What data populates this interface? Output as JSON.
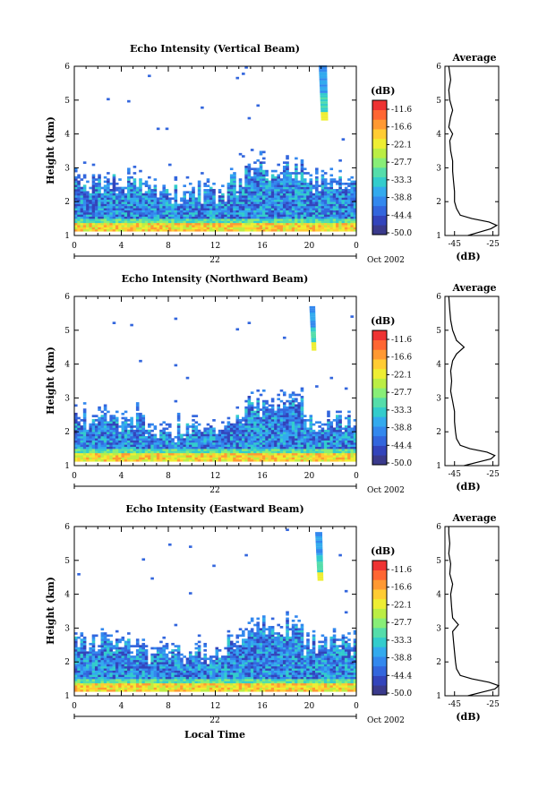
{
  "chart_data": [
    {
      "type": "heatmap",
      "title": "Echo Intensity (Vertical Beam)",
      "ylabel": "Height (km)",
      "xlabel": "",
      "x_ticks": [
        "0",
        "4",
        "8",
        "12",
        "16",
        "20",
        "0"
      ],
      "y_ticks": [
        "1",
        "2",
        "3",
        "4",
        "5",
        "6"
      ],
      "date_day": "22",
      "date_month": "Oct 2002",
      "xlim": [
        0,
        24
      ],
      "ylim": [
        1,
        6
      ],
      "cloud_top_km": 2.8,
      "plume": {
        "hour_start": 20.8,
        "hour_end": 21.6,
        "top_km": 6.0,
        "bottom_km": 4.4
      },
      "colorbar": {
        "unit": "(dB)",
        "labels": [
          "-11.6",
          "-16.6",
          "-22.1",
          "-27.7",
          "-33.3",
          "-38.8",
          "-44.4",
          "-50.0"
        ]
      },
      "profile": {
        "title": "Average",
        "xlabel": "(dB)",
        "x_ticks": [
          "-45",
          "-25"
        ],
        "xlim": [
          -50,
          -22
        ],
        "y_ticks": [
          "1",
          "2",
          "3",
          "4",
          "5",
          "6"
        ],
        "height": [
          1.0,
          1.1,
          1.2,
          1.3,
          1.4,
          1.5,
          1.6,
          1.8,
          2.0,
          2.3,
          2.6,
          2.9,
          3.2,
          3.5,
          3.8,
          4.0,
          4.2,
          4.5,
          4.7,
          5.0,
          5.3,
          5.6,
          6.0
        ],
        "value": [
          -38,
          -32,
          -26,
          -23,
          -27,
          -36,
          -42,
          -44,
          -45,
          -45,
          -45.5,
          -46,
          -46,
          -47,
          -47.5,
          -46,
          -48,
          -47,
          -46,
          -47.5,
          -48,
          -47,
          -48
        ]
      }
    },
    {
      "type": "heatmap",
      "title": "Echo Intensity (Northward Beam)",
      "ylabel": "Height (km)",
      "xlabel": "",
      "x_ticks": [
        "0",
        "4",
        "8",
        "12",
        "16",
        "20",
        "0"
      ],
      "y_ticks": [
        "1",
        "2",
        "3",
        "4",
        "5",
        "6"
      ],
      "date_day": "22",
      "date_month": "Oct 2002",
      "xlim": [
        0,
        24
      ],
      "ylim": [
        1,
        6
      ],
      "cloud_top_km": 2.6,
      "plume": {
        "hour_start": 20.0,
        "hour_end": 20.6,
        "top_km": 5.7,
        "bottom_km": 4.4
      },
      "colorbar": {
        "unit": "(dB)",
        "labels": [
          "-11.6",
          "-16.6",
          "-22.1",
          "-27.7",
          "-33.3",
          "-38.8",
          "-44.4",
          "-50.0"
        ]
      },
      "profile": {
        "title": "Average",
        "xlabel": "(dB)",
        "x_ticks": [
          "-45",
          "-25"
        ],
        "xlim": [
          -50,
          -22
        ],
        "y_ticks": [
          "1",
          "2",
          "3",
          "4",
          "5",
          "6"
        ],
        "height": [
          1.0,
          1.1,
          1.2,
          1.3,
          1.4,
          1.5,
          1.6,
          1.8,
          2.0,
          2.3,
          2.6,
          2.9,
          3.2,
          3.5,
          3.8,
          4.1,
          4.3,
          4.5,
          4.7,
          5.0,
          5.3,
          5.6,
          6.0
        ],
        "value": [
          -40,
          -33,
          -26,
          -24,
          -28,
          -37,
          -42,
          -44,
          -44.5,
          -45,
          -45,
          -46,
          -47,
          -46.5,
          -47,
          -46,
          -44,
          -40,
          -44,
          -46,
          -47,
          -47.5,
          -48
        ]
      }
    },
    {
      "type": "heatmap",
      "title": "Echo Intensity (Eastward Beam)",
      "ylabel": "Height (km)",
      "xlabel": "Local Time",
      "x_ticks": [
        "0",
        "4",
        "8",
        "12",
        "16",
        "20",
        "0"
      ],
      "y_ticks": [
        "1",
        "2",
        "3",
        "4",
        "5",
        "6"
      ],
      "date_day": "22",
      "date_month": "Oct 2002",
      "xlim": [
        0,
        24
      ],
      "ylim": [
        1,
        6
      ],
      "cloud_top_km": 2.8,
      "plume": {
        "hour_start": 20.5,
        "hour_end": 21.2,
        "top_km": 5.8,
        "bottom_km": 4.4
      },
      "colorbar": {
        "unit": "(dB)",
        "labels": [
          "-11.6",
          "-16.6",
          "-22.1",
          "-27.7",
          "-33.3",
          "-38.8",
          "-44.4",
          "-50.0"
        ]
      },
      "profile": {
        "title": "Average",
        "xlabel": "(dB)",
        "x_ticks": [
          "-45",
          "-25"
        ],
        "xlim": [
          -50,
          -22
        ],
        "y_ticks": [
          "1",
          "2",
          "3",
          "4",
          "5",
          "6"
        ],
        "height": [
          1.0,
          1.1,
          1.2,
          1.3,
          1.4,
          1.5,
          1.6,
          1.8,
          2.0,
          2.3,
          2.6,
          2.9,
          3.1,
          3.3,
          3.6,
          4.0,
          4.3,
          4.6,
          4.9,
          5.2,
          5.5,
          5.8,
          6.0
        ],
        "value": [
          -38,
          -31,
          -24,
          -22,
          -27,
          -36,
          -42,
          -44,
          -44.5,
          -45,
          -45.5,
          -46,
          -43,
          -46,
          -46.5,
          -47,
          -46,
          -47.5,
          -47,
          -48,
          -47.5,
          -48,
          -48
        ]
      }
    }
  ],
  "colors": {
    "palette": [
      "#3a3a8c",
      "#3344bb",
      "#3366dd",
      "#3388ee",
      "#33aaee",
      "#33cccc",
      "#55ddaa",
      "#88ee77",
      "#bbee44",
      "#eeee33",
      "#ffcc33",
      "#ff9933",
      "#ff6633",
      "#ee3333"
    ]
  }
}
